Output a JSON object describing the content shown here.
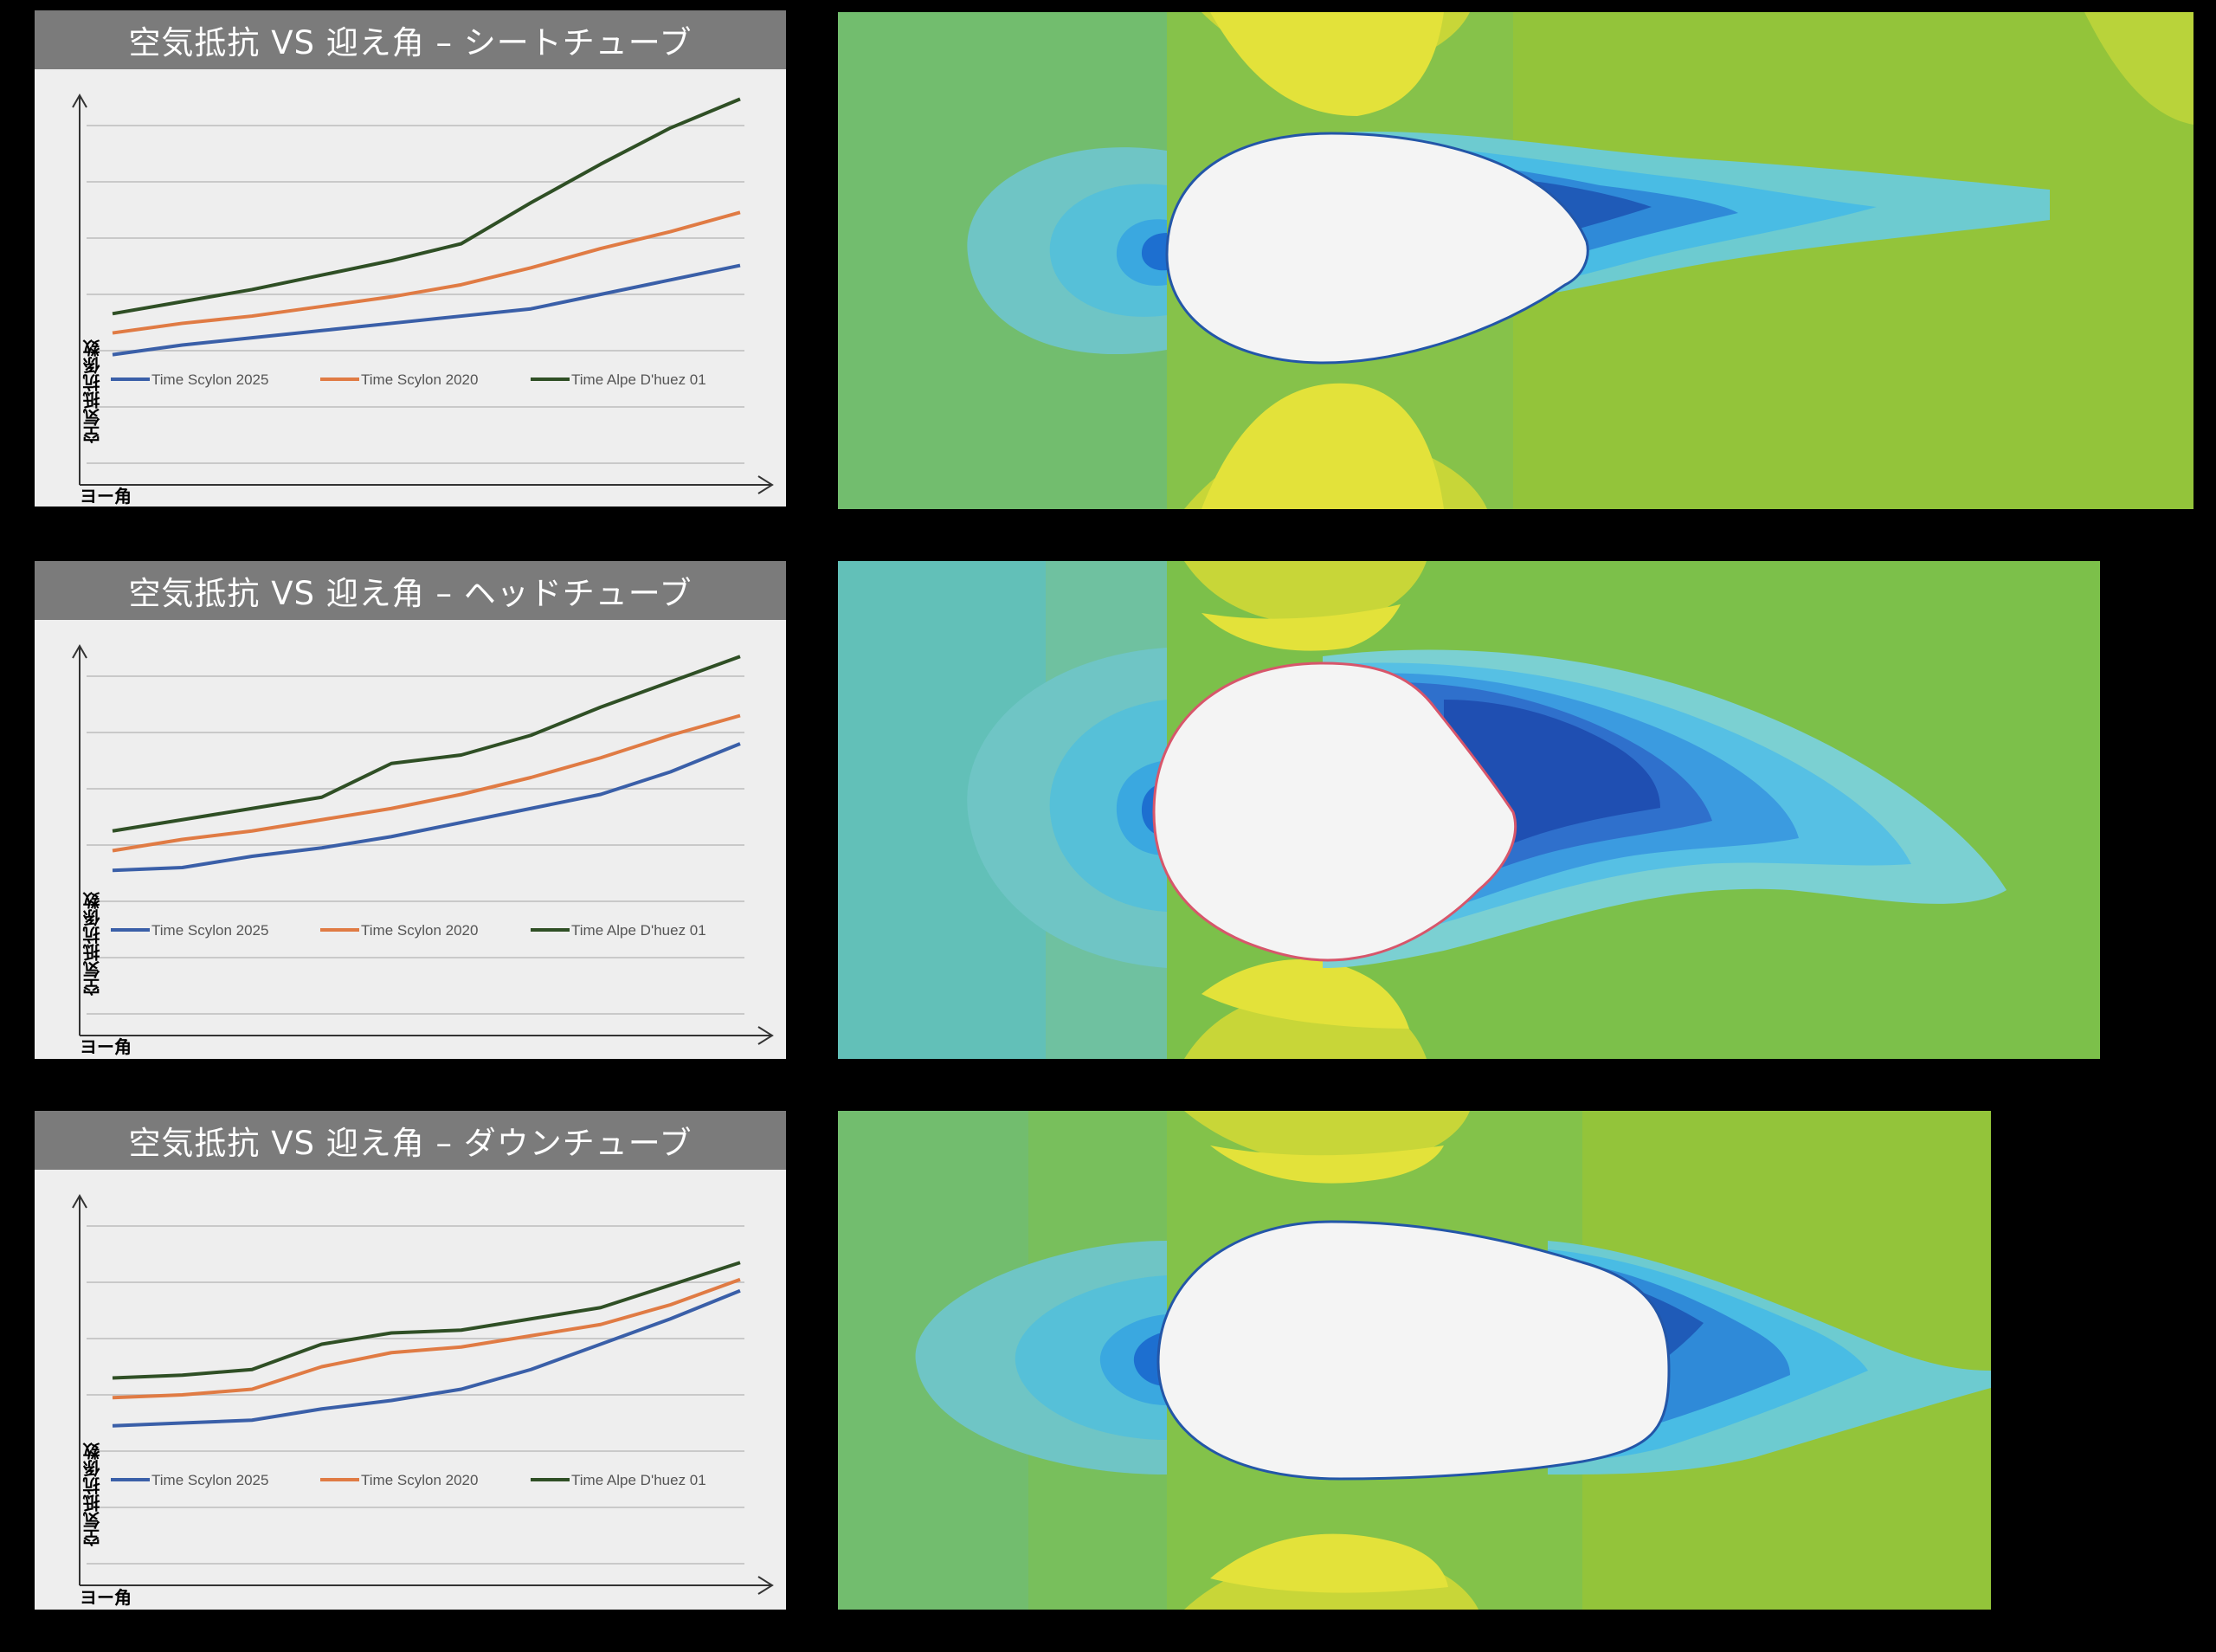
{
  "colors": {
    "scylon2025": "#3a5fa8",
    "scylon2020": "#e07b44",
    "alpe": "#2f4f25",
    "header_bg": "#7b7b7b"
  },
  "chart_data": [
    {
      "type": "line",
      "title": "空気抵抗 VS 迎え角 – シートチューブ",
      "xlabel": "ヨー角",
      "ylabel": "空気抵抗係数",
      "x": [
        0,
        1,
        2,
        3,
        4,
        5,
        6,
        7,
        8,
        9
      ],
      "ylim": [
        0,
        7
      ],
      "grid": true,
      "legend_position": "middle-left",
      "series": [
        {
          "name": "Time Scylon 2025",
          "values": [
            2.25,
            2.45,
            2.6,
            2.75,
            2.9,
            3.05,
            3.2,
            3.5,
            3.8,
            4.1
          ]
        },
        {
          "name": "Time Scylon 2020",
          "values": [
            2.7,
            2.9,
            3.05,
            3.25,
            3.45,
            3.7,
            4.05,
            4.45,
            4.8,
            5.2
          ]
        },
        {
          "name": "Time Alpe D'huez 01",
          "values": [
            3.1,
            3.35,
            3.6,
            3.9,
            4.2,
            4.55,
            5.4,
            6.2,
            6.95,
            7.55
          ]
        }
      ]
    },
    {
      "type": "line",
      "title": "空気抵抗 VS 迎え角 – ヘッドチューブ",
      "xlabel": "ヨー角",
      "ylabel": "空気抵抗係数",
      "x": [
        0,
        1,
        2,
        3,
        4,
        5,
        6,
        7,
        8,
        9
      ],
      "ylim": [
        0,
        6
      ],
      "grid": true,
      "legend_position": "middle-left",
      "series": [
        {
          "name": "Time Scylon 2025",
          "values": [
            2.55,
            2.6,
            2.8,
            2.95,
            3.15,
            3.4,
            3.65,
            3.9,
            4.3,
            4.8
          ]
        },
        {
          "name": "Time Scylon 2020",
          "values": [
            2.9,
            3.1,
            3.25,
            3.45,
            3.65,
            3.9,
            4.2,
            4.55,
            4.95,
            5.3
          ]
        },
        {
          "name": "Time Alpe D'huez 01",
          "values": [
            3.25,
            3.45,
            3.65,
            3.85,
            4.45,
            4.6,
            4.95,
            5.45,
            5.9,
            6.35
          ]
        }
      ]
    },
    {
      "type": "line",
      "title": "空気抵抗 VS 迎え角 – ダウンチューブ",
      "xlabel": "ヨー角",
      "ylabel": "空気抵抗係数",
      "x": [
        0,
        1,
        2,
        3,
        4,
        5,
        6,
        7,
        8,
        9
      ],
      "ylim": [
        0,
        6
      ],
      "grid": true,
      "legend_position": "middle-left",
      "series": [
        {
          "name": "Time Scylon 2025",
          "values": [
            2.45,
            2.5,
            2.55,
            2.75,
            2.9,
            3.1,
            3.45,
            3.9,
            4.35,
            4.85
          ]
        },
        {
          "name": "Time Scylon 2020",
          "values": [
            2.95,
            3.0,
            3.1,
            3.5,
            3.75,
            3.85,
            4.05,
            4.25,
            4.6,
            5.05
          ]
        },
        {
          "name": "Time Alpe D'huez 01",
          "values": [
            3.3,
            3.35,
            3.45,
            3.9,
            4.1,
            4.15,
            4.35,
            4.55,
            4.95,
            5.35
          ]
        }
      ]
    }
  ],
  "cfd_images": [
    {
      "label": "シートチューブ CFD"
    },
    {
      "label": "ヘッドチューブ CFD"
    },
    {
      "label": "ダウンチューブ CFD"
    }
  ]
}
